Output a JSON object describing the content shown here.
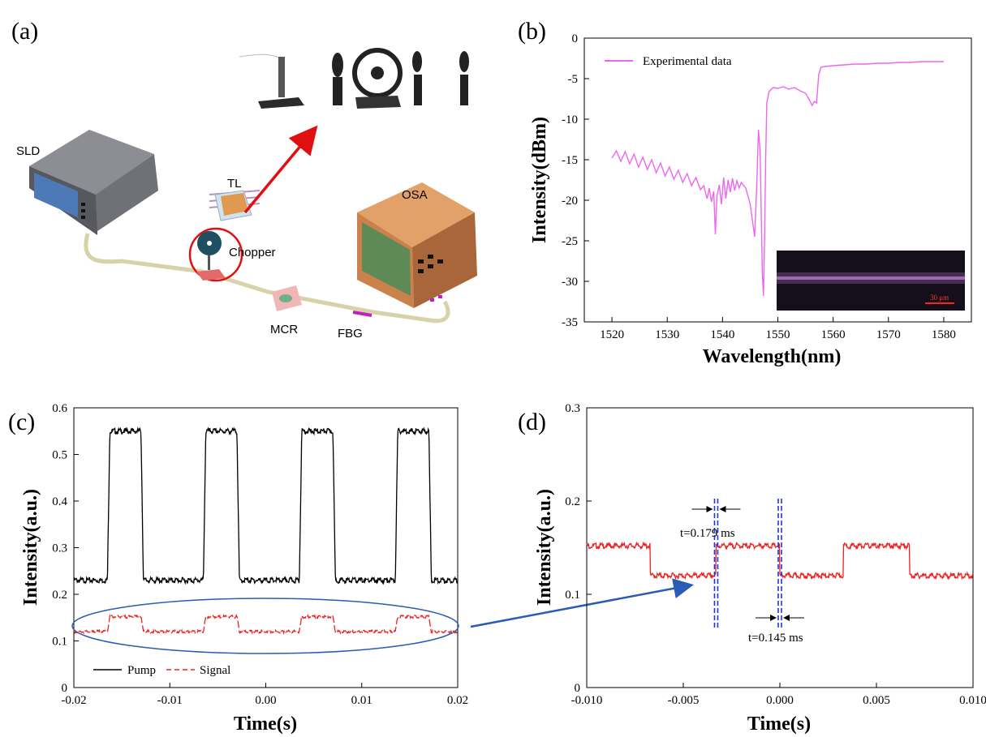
{
  "panel_labels": [
    "(a)",
    "(b)",
    "(c)",
    "(d)"
  ],
  "setup": {
    "labels": {
      "sld": "SLD",
      "tl": "TL",
      "chopper": "Chopper",
      "osa": "OSA",
      "mcr": "MCR",
      "fbg": "FBG"
    },
    "colors": {
      "device_gray": "#7d7f86",
      "osa_orange": "#d9925a",
      "screen_green": "#5d8a55",
      "fiber": "#d8d2a8",
      "arrow_red": "#e01010",
      "fbg_magenta": "#c020c0"
    }
  },
  "chart_data": [
    {
      "panel": "(b)",
      "type": "line",
      "xlabel": "Wavelength(nm)",
      "ylabel": "Intensity(dBm)",
      "xlim": [
        1515,
        1585
      ],
      "ylim": [
        -35,
        0
      ],
      "xticks": [
        1520,
        1530,
        1540,
        1550,
        1560,
        1570,
        1580
      ],
      "yticks": [
        0,
        -5,
        -10,
        -15,
        -20,
        -25,
        -30,
        -35
      ],
      "legend": "top-left",
      "series": [
        {
          "name": "Experimental data",
          "color": "#ee66ee",
          "x": [
            1520,
            1520.8,
            1521.6,
            1522.4,
            1523.2,
            1524,
            1524.8,
            1525.6,
            1526.4,
            1527.2,
            1528,
            1528.8,
            1529.6,
            1530.4,
            1531.2,
            1532,
            1532.8,
            1533.6,
            1534.4,
            1535.2,
            1536,
            1536.6,
            1537.2,
            1537.6,
            1538,
            1538.4,
            1538.7,
            1539,
            1539.4,
            1539.8,
            1540.2,
            1540.6,
            1541,
            1541.4,
            1541.8,
            1542.2,
            1542.6,
            1543,
            1543.4,
            1543.8,
            1544.2,
            1544.6,
            1545,
            1545.4,
            1545.8,
            1546.2,
            1546.5,
            1546.8,
            1547,
            1547.2,
            1547.4,
            1547.6,
            1547.8,
            1548,
            1548.4,
            1548.8,
            1549.2,
            1550,
            1551,
            1552,
            1553,
            1554,
            1555,
            1555.6,
            1556.2,
            1556.6,
            1557,
            1557.4,
            1557.8,
            1558.5,
            1560,
            1562,
            1564,
            1566,
            1568,
            1570,
            1572,
            1574,
            1576,
            1578,
            1580
          ],
          "y": [
            -14.8,
            -13.9,
            -15.2,
            -14.0,
            -15.5,
            -14.3,
            -15.9,
            -14.7,
            -16.2,
            -15.0,
            -16.6,
            -15.4,
            -17.0,
            -15.9,
            -17.4,
            -16.3,
            -17.8,
            -16.7,
            -18.2,
            -17.2,
            -18.7,
            -18.2,
            -19.8,
            -18.5,
            -20.2,
            -18.9,
            -24.2,
            -19.5,
            -18.1,
            -20.5,
            -17.2,
            -19.8,
            -17.5,
            -19.0,
            -17.3,
            -18.8,
            -17.6,
            -18.5,
            -17.8,
            -18.2,
            -18.5,
            -19.5,
            -20.5,
            -22.5,
            -24.5,
            -18.0,
            -11.3,
            -14.0,
            -22.0,
            -29.0,
            -31.8,
            -25.0,
            -15.0,
            -8.0,
            -6.6,
            -6.3,
            -6.1,
            -6.2,
            -6.0,
            -6.3,
            -6.1,
            -6.5,
            -6.8,
            -7.5,
            -8.3,
            -7.8,
            -8.0,
            -4.5,
            -3.6,
            -3.5,
            -3.4,
            -3.3,
            -3.2,
            -3.2,
            -3.1,
            -3.1,
            -3.0,
            -3.0,
            -2.9,
            -2.9,
            -2.9
          ]
        }
      ],
      "inset": {
        "scale_text": "30 μm"
      }
    },
    {
      "panel": "(c)",
      "type": "line",
      "xlabel": "Time(s)",
      "ylabel": "Intensity(a.u.)",
      "xlim": [
        -0.02,
        0.02
      ],
      "ylim": [
        0,
        0.6
      ],
      "xticks": [
        -0.02,
        -0.01,
        0.0,
        0.01,
        0.02
      ],
      "xtick_labels": [
        "-0.02",
        "-0.01",
        "0.00",
        "0.01",
        "0.02"
      ],
      "yticks": [
        0,
        0.1,
        0.2,
        0.3,
        0.4,
        0.5,
        0.6
      ],
      "ytick_labels": [
        "0",
        "0.1",
        "0.2",
        "0.3",
        "0.4",
        "0.5",
        "0.6"
      ],
      "legend": "bottom-left",
      "period": 0.01,
      "series": [
        {
          "name": "Pump",
          "color": "#000000",
          "dash": "solid",
          "low": 0.23,
          "high": 0.55,
          "first_rise": -0.0165,
          "high_duration": 0.0035
        },
        {
          "name": "Signal",
          "color": "#ee2222",
          "dash": "dashed",
          "low": 0.12,
          "high": 0.152,
          "first_rise": -0.0165,
          "high_duration": 0.0035
        }
      ]
    },
    {
      "panel": "(d)",
      "type": "line",
      "xlabel": "Time(s)",
      "ylabel": "Intensity(a.u.)",
      "xlim": [
        -0.01,
        0.01
      ],
      "ylim": [
        0,
        0.3
      ],
      "xticks": [
        -0.01,
        -0.005,
        0.0,
        0.005,
        0.01
      ],
      "xtick_labels": [
        "-0.010",
        "-0.005",
        "0.000",
        "0.005",
        "0.010"
      ],
      "yticks": [
        0,
        0.1,
        0.2,
        0.3
      ],
      "ytick_labels": [
        "0",
        "0.1",
        "0.2",
        "0.3"
      ],
      "series": [
        {
          "name": "Signal",
          "color": "#ee2222",
          "low": 0.12,
          "high": 0.152,
          "edges": [
            -0.0067,
            -0.0033,
            0.0,
            0.0033,
            0.0067
          ]
        }
      ],
      "annotations": [
        {
          "text": "t=0.179 ms",
          "x": -0.0033
        },
        {
          "text": "t=0.145 ms",
          "x": 0.0
        }
      ]
    }
  ]
}
